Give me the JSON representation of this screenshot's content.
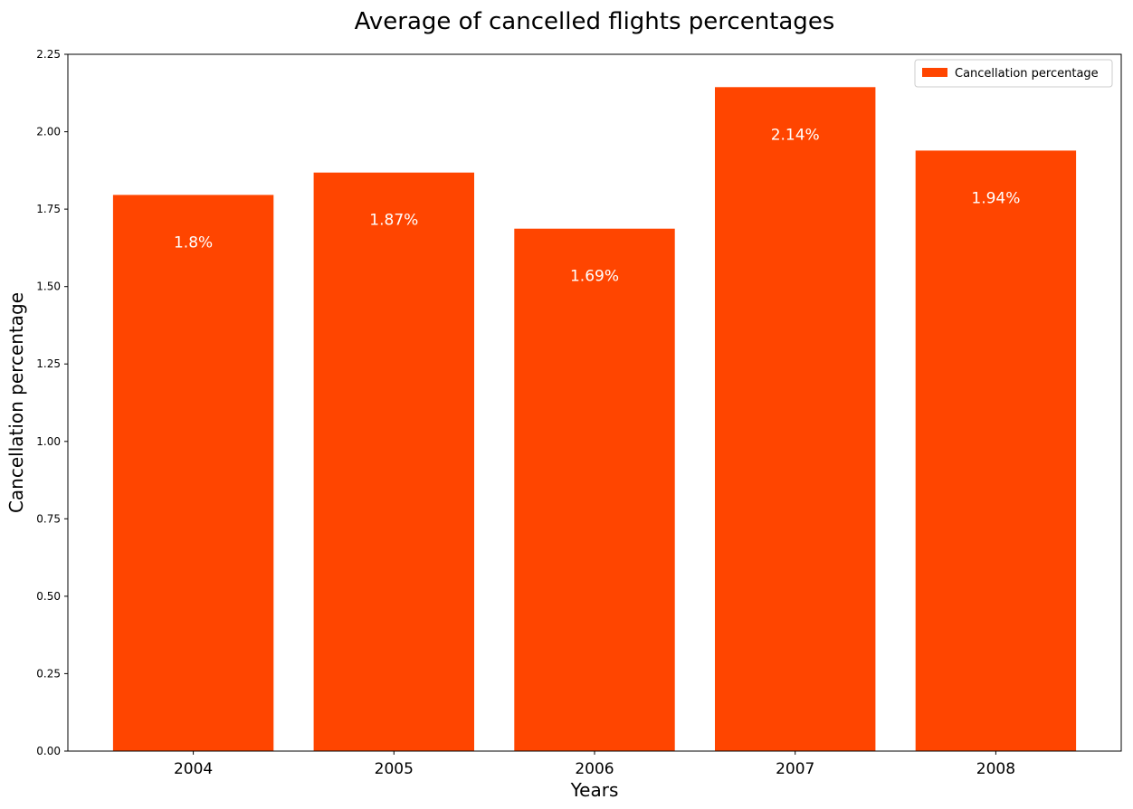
{
  "chart_data": {
    "type": "bar",
    "title": "Average of cancelled flights percentages",
    "xlabel": "Years",
    "ylabel": "Cancellation percentage",
    "categories": [
      "2004",
      "2005",
      "2006",
      "2007",
      "2008"
    ],
    "series": [
      {
        "name": "Cancellation percentage",
        "values": [
          1.796,
          1.868,
          1.687,
          2.144,
          1.939
        ],
        "value_labels": [
          "1.8%",
          "1.87%",
          "1.69%",
          "2.14%",
          "1.94%"
        ],
        "color": "#ff4500"
      }
    ],
    "ylim": [
      0,
      2.25
    ],
    "yticks": [
      0.0,
      0.25,
      0.5,
      0.75,
      1.0,
      1.25,
      1.5,
      1.75,
      2.0,
      2.25
    ],
    "ytick_labels": [
      "0.00",
      "0.25",
      "0.50",
      "0.75",
      "1.00",
      "1.25",
      "1.50",
      "1.75",
      "2.00",
      "2.25"
    ],
    "legend_position": "top-right",
    "grid": false
  }
}
